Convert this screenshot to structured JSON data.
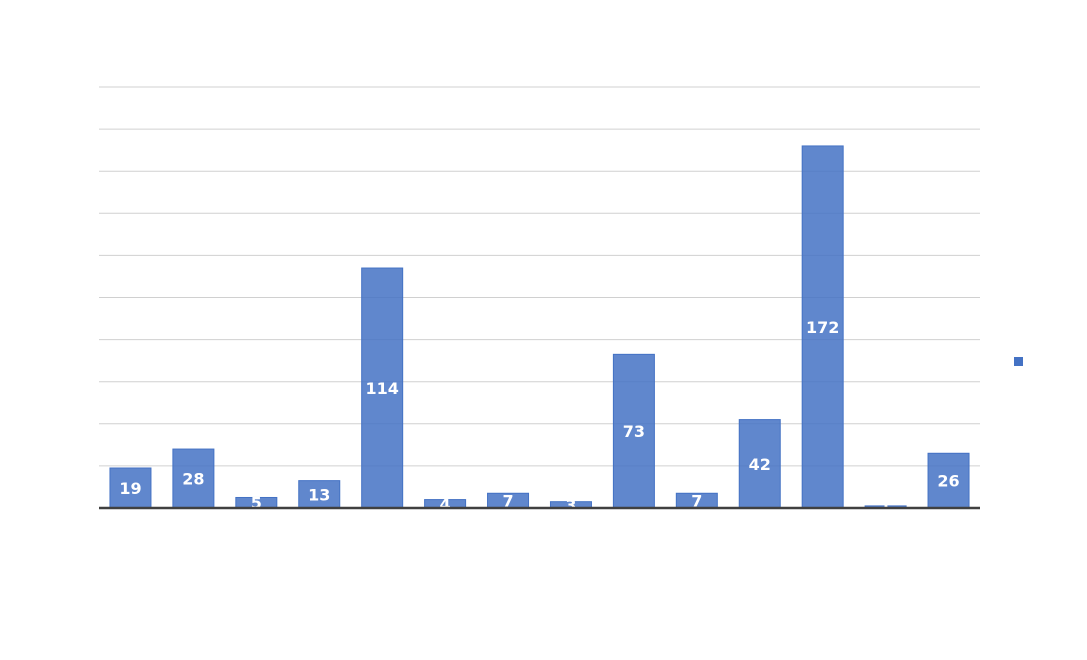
{
  "chart_data": {
    "type": "bar",
    "categories": [
      "",
      "",
      "",
      "",
      "",
      "",
      "",
      "",
      "",
      "",
      "",
      "",
      "",
      ""
    ],
    "values": [
      19,
      28,
      5,
      13,
      114,
      4,
      7,
      3,
      73,
      7,
      42,
      172,
      1,
      26
    ],
    "title": "",
    "xlabel": "",
    "ylabel": "",
    "ylim": [
      0,
      200
    ],
    "grid": true,
    "legend": "right",
    "series": [
      {
        "name": "",
        "values": [
          19,
          28,
          5,
          13,
          114,
          4,
          7,
          3,
          73,
          7,
          42,
          172,
          1,
          26
        ]
      }
    ]
  },
  "colors": {
    "bar": "#4472c4",
    "grid": "#d0d0d0",
    "axis": "#404040",
    "label": "#ffffff"
  }
}
